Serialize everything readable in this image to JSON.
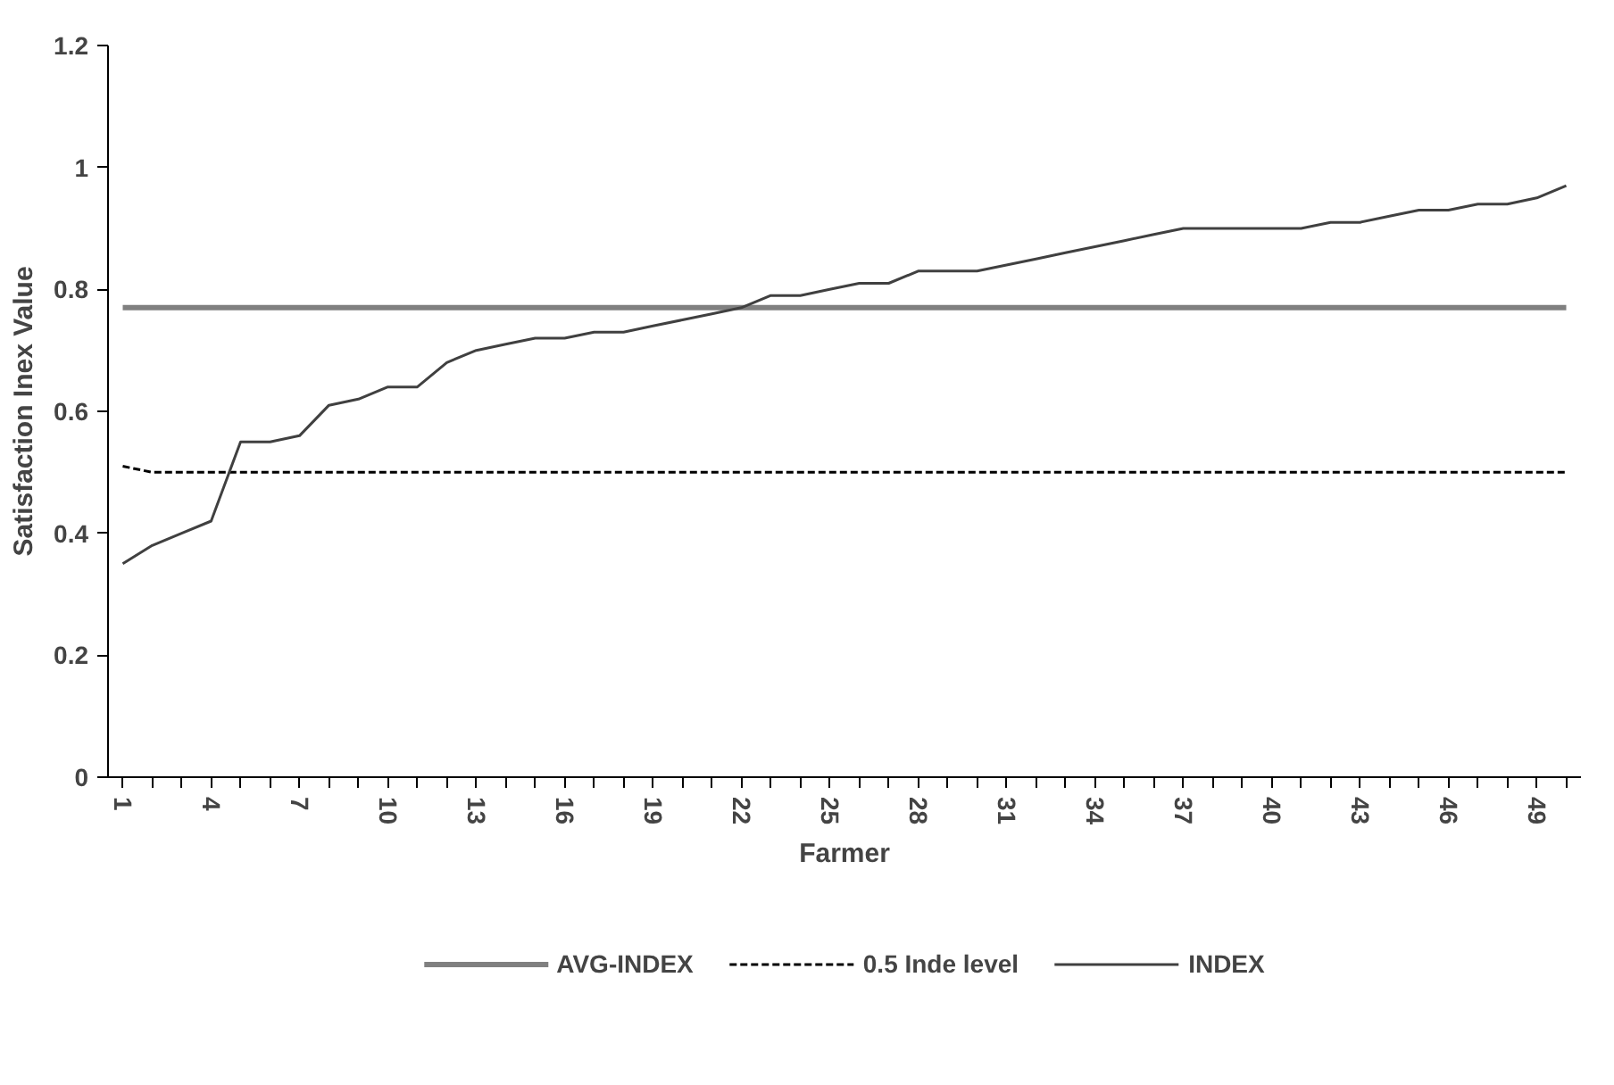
{
  "chart_data": {
    "type": "line",
    "xlabel": "Farmer",
    "ylabel": "Satisfaction Inex Value",
    "categories": [
      "1",
      null,
      null,
      "4",
      null,
      null,
      "7",
      null,
      null,
      "10",
      null,
      null,
      "13",
      null,
      null,
      "16",
      null,
      null,
      "19",
      null,
      null,
      "22",
      null,
      null,
      "25",
      null,
      null,
      "28",
      null,
      null,
      "31",
      null,
      null,
      "34",
      null,
      null,
      "37",
      null,
      null,
      "40",
      null,
      null,
      "43",
      null,
      null,
      "46",
      null,
      null,
      "49",
      null
    ],
    "series": [
      {
        "name": "AVG-INDEX",
        "color": "#808080",
        "line_style": "solid",
        "values": [
          0.77,
          0.77,
          0.77,
          0.77,
          0.77,
          0.77,
          0.77,
          0.77,
          0.77,
          0.77,
          0.77,
          0.77,
          0.77,
          0.77,
          0.77,
          0.77,
          0.77,
          0.77,
          0.77,
          0.77,
          0.77,
          0.77,
          0.77,
          0.77,
          0.77,
          0.77,
          0.77,
          0.77,
          0.77,
          0.77,
          0.77,
          0.77,
          0.77,
          0.77,
          0.77,
          0.77,
          0.77,
          0.77,
          0.77,
          0.77,
          0.77,
          0.77,
          0.77,
          0.77,
          0.77,
          0.77,
          0.77,
          0.77,
          0.77,
          0.77
        ]
      },
      {
        "name": "0.5 Inde level",
        "color": "#000000",
        "line_style": "dashed",
        "values": [
          0.51,
          0.5,
          0.5,
          0.5,
          0.5,
          0.5,
          0.5,
          0.5,
          0.5,
          0.5,
          0.5,
          0.5,
          0.5,
          0.5,
          0.5,
          0.5,
          0.5,
          0.5,
          0.5,
          0.5,
          0.5,
          0.5,
          0.5,
          0.5,
          0.5,
          0.5,
          0.5,
          0.5,
          0.5,
          0.5,
          0.5,
          0.5,
          0.5,
          0.5,
          0.5,
          0.5,
          0.5,
          0.5,
          0.5,
          0.5,
          0.5,
          0.5,
          0.5,
          0.5,
          0.5,
          0.5,
          0.5,
          0.5,
          0.5,
          0.5
        ]
      },
      {
        "name": "INDEX",
        "color": "#404040",
        "line_style": "solid",
        "values": [
          0.35,
          0.38,
          0.4,
          0.42,
          0.55,
          0.55,
          0.56,
          0.61,
          0.62,
          0.64,
          0.64,
          0.68,
          0.7,
          0.71,
          0.72,
          0.72,
          0.73,
          0.73,
          0.74,
          0.75,
          0.76,
          0.77,
          0.79,
          0.79,
          0.8,
          0.81,
          0.81,
          0.83,
          0.83,
          0.83,
          0.84,
          0.85,
          0.86,
          0.87,
          0.88,
          0.89,
          0.9,
          0.9,
          0.9,
          0.9,
          0.9,
          0.91,
          0.91,
          0.92,
          0.93,
          0.93,
          0.94,
          0.94,
          0.95,
          0.97
        ]
      }
    ],
    "ylim": [
      0,
      1.2
    ],
    "yticks": [
      0,
      0.2,
      0.4,
      0.6,
      0.8,
      1,
      1.2
    ],
    "grid": false,
    "legend": "bottom"
  }
}
